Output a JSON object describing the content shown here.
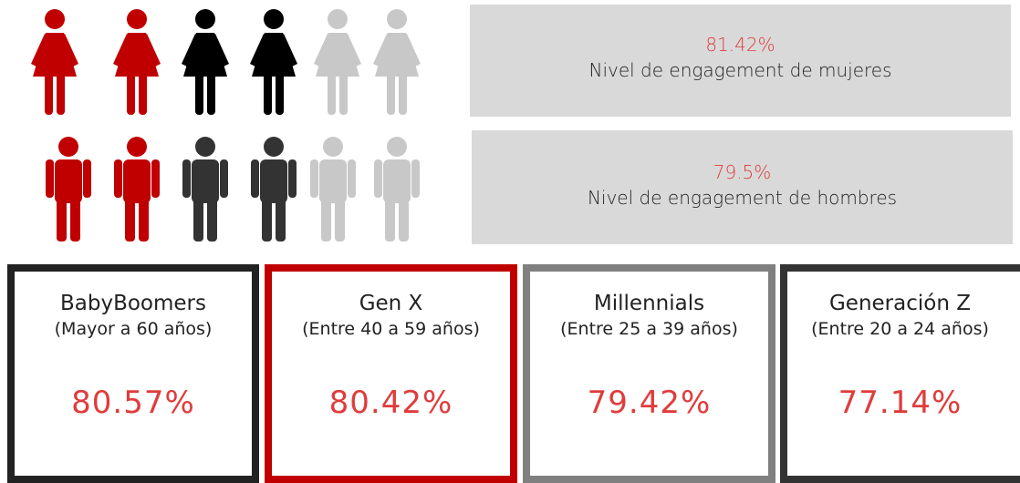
{
  "women": {
    "value": "81.42%",
    "label": "Nivel de engagement de mujeres"
  },
  "men": {
    "value": "79.5%",
    "label": "Nivel de engagement de hombres"
  },
  "generations": [
    {
      "name": "BabyBoomers",
      "range": "(Mayor a 60 años)",
      "value": "80.57%"
    },
    {
      "name": "Gen X",
      "range": "(Entre 40 a 59 años)",
      "value": "80.42%"
    },
    {
      "name": "Millennials",
      "range": "(Entre 25 a 39 años)",
      "value": "79.42%"
    },
    {
      "name": "Generación Z",
      "range": "(Entre 20 a 24 años)",
      "value": "77.14%"
    }
  ]
}
